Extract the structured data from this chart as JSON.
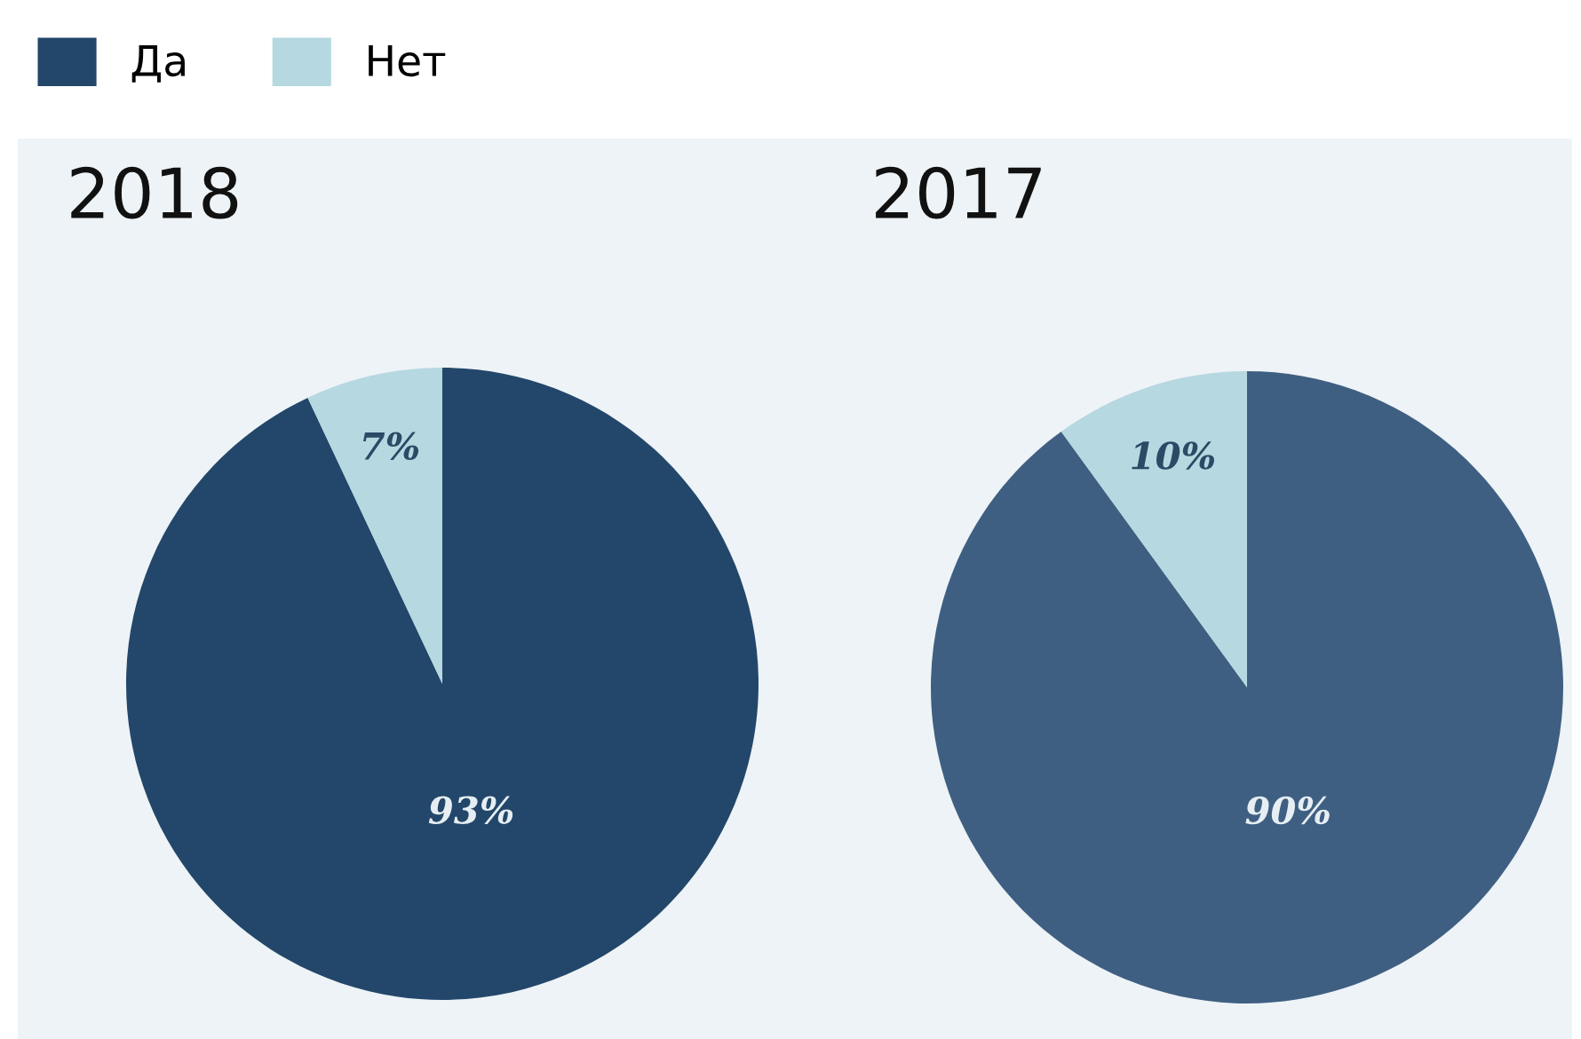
{
  "chart_data": [
    {
      "type": "pie",
      "title": "2018",
      "categories": [
        "Да",
        "Нет"
      ],
      "values": [
        93,
        7
      ],
      "colors": [
        "#23476a",
        "#b6d8e0"
      ],
      "value_labels": [
        "93%",
        "7%"
      ],
      "legend": "top left"
    },
    {
      "type": "pie",
      "title": "2017",
      "categories": [
        null,
        null
      ],
      "values": [
        90,
        10
      ],
      "colors": [
        "#3f5f82",
        "#b6d8e0"
      ],
      "value_labels": [
        "90%",
        "10%"
      ]
    }
  ]
}
